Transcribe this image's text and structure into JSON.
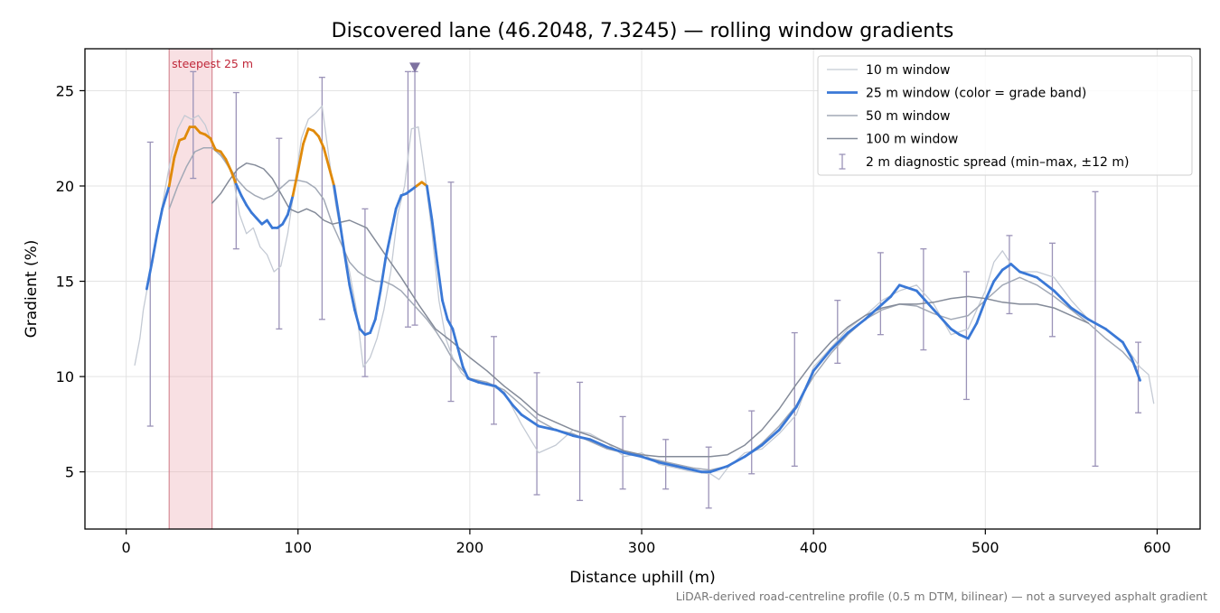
{
  "chart_data": {
    "type": "line",
    "title": "Discovered lane (46.2048, 7.3245) — rolling window gradients",
    "xlabel": "Distance uphill (m)",
    "ylabel": "Gradient (%)",
    "xlim": [
      -24,
      625
    ],
    "ylim": [
      2,
      27.2
    ],
    "xticks": [
      0,
      100,
      200,
      300,
      400,
      500,
      600
    ],
    "yticks": [
      5,
      10,
      15,
      20,
      25
    ],
    "grid": true,
    "legend_position": "top-right",
    "footnote": "LiDAR-derived road-centreline profile (0.5 m DTM, bilinear) — not a surveyed asphalt gradient",
    "highlight": {
      "label": "steepest 25 m",
      "x_range": [
        25,
        50
      ],
      "color": "#e8a0a8"
    },
    "peak_marker": {
      "x": 168,
      "y": 26.0,
      "color": "#7e72a0"
    },
    "grade_band_colors": {
      "below_20": "#3a78d6",
      "at_or_above_20": "#e08a0a"
    },
    "series": [
      {
        "name": "10 m window",
        "color": "#c4cad4",
        "width": 1.3,
        "x": [
          5,
          8,
          10,
          14,
          18,
          22,
          26,
          30,
          34,
          38,
          42,
          46,
          50,
          54,
          58,
          62,
          66,
          70,
          74,
          78,
          82,
          86,
          90,
          94,
          98,
          102,
          106,
          110,
          114,
          118,
          122,
          126,
          130,
          134,
          138,
          142,
          146,
          150,
          154,
          158,
          162,
          166,
          170,
          174,
          178,
          182,
          186,
          190,
          195,
          200,
          210,
          220,
          230,
          240,
          250,
          260,
          270,
          280,
          290,
          300,
          310,
          320,
          330,
          340,
          345,
          350,
          360,
          370,
          380,
          390,
          400,
          410,
          420,
          430,
          440,
          450,
          460,
          470,
          480,
          490,
          500,
          505,
          510,
          515,
          520,
          530,
          540,
          550,
          560,
          570,
          580,
          590,
          595,
          598
        ],
        "y": [
          10.6,
          12.0,
          13.5,
          15.5,
          17.5,
          19.5,
          21.5,
          23.0,
          23.7,
          23.5,
          23.7,
          23.2,
          22.2,
          21.8,
          21.2,
          20.6,
          18.5,
          17.5,
          17.8,
          16.8,
          16.4,
          15.5,
          15.8,
          17.5,
          20.0,
          22.5,
          23.5,
          23.8,
          24.2,
          21.5,
          19.0,
          17.0,
          15.5,
          13.5,
          10.5,
          11.0,
          12.0,
          13.5,
          15.5,
          18.5,
          20.0,
          23.0,
          23.1,
          20.5,
          17.5,
          14.0,
          12.0,
          11.0,
          10.2,
          9.8,
          9.6,
          9.2,
          7.5,
          6.0,
          6.4,
          7.2,
          7.0,
          6.5,
          5.8,
          6.0,
          5.4,
          5.2,
          5.0,
          4.9,
          4.6,
          5.2,
          6.0,
          6.2,
          7.0,
          8.0,
          10.5,
          11.5,
          12.5,
          13.2,
          14.0,
          14.5,
          14.8,
          13.8,
          12.2,
          12.5,
          14.5,
          16.0,
          16.6,
          15.9,
          15.5,
          15.5,
          15.2,
          14.0,
          13.0,
          12.5,
          11.8,
          10.5,
          10.1,
          8.6
        ]
      },
      {
        "name": "25 m window (color = grade band)",
        "color": "#3a78d6",
        "width": 2.8,
        "x": [
          12,
          15,
          18,
          21,
          25,
          28,
          31,
          34,
          37,
          40,
          43,
          46,
          49,
          52,
          55,
          58,
          61,
          64,
          67,
          70,
          73,
          76,
          79,
          82,
          85,
          88,
          91,
          94,
          97,
          100,
          103,
          106,
          109,
          112,
          115,
          118,
          121,
          124,
          127,
          130,
          133,
          136,
          139,
          142,
          145,
          148,
          151,
          154,
          157,
          160,
          163,
          166,
          169,
          172,
          175,
          178,
          181,
          184,
          187,
          190,
          193,
          196,
          199,
          205,
          210,
          215,
          220,
          225,
          230,
          240,
          250,
          260,
          270,
          280,
          290,
          300,
          310,
          320,
          330,
          335,
          340,
          350,
          360,
          370,
          380,
          390,
          395,
          400,
          410,
          420,
          430,
          440,
          445,
          450,
          460,
          470,
          480,
          485,
          490,
          495,
          500,
          505,
          510,
          515,
          520,
          530,
          540,
          550,
          560,
          570,
          580,
          585,
          590
        ],
        "y": [
          14.6,
          16.0,
          17.5,
          18.8,
          20.0,
          21.5,
          22.4,
          22.5,
          23.1,
          23.1,
          22.8,
          22.7,
          22.5,
          21.9,
          21.8,
          21.4,
          20.8,
          20.1,
          19.5,
          19.0,
          18.6,
          18.3,
          18.0,
          18.2,
          17.8,
          17.8,
          18.0,
          18.5,
          19.5,
          20.8,
          22.2,
          23.0,
          22.9,
          22.6,
          22.0,
          21.0,
          20.0,
          18.3,
          16.5,
          14.8,
          13.5,
          12.5,
          12.2,
          12.3,
          13.0,
          14.5,
          16.2,
          17.5,
          18.8,
          19.5,
          19.6,
          19.8,
          20.0,
          20.2,
          20.0,
          18.2,
          16.0,
          14.0,
          13.0,
          12.5,
          11.5,
          10.5,
          9.9,
          9.7,
          9.6,
          9.5,
          9.1,
          8.5,
          8.0,
          7.4,
          7.2,
          6.9,
          6.7,
          6.3,
          6.0,
          5.8,
          5.5,
          5.3,
          5.1,
          5.0,
          5.0,
          5.3,
          5.8,
          6.4,
          7.2,
          8.4,
          9.3,
          10.3,
          11.4,
          12.3,
          13.0,
          13.8,
          14.2,
          14.8,
          14.5,
          13.5,
          12.5,
          12.2,
          12.0,
          12.8,
          14.0,
          15.0,
          15.6,
          15.9,
          15.5,
          15.2,
          14.5,
          13.6,
          13.0,
          12.5,
          11.8,
          11.0,
          9.8
        ]
      },
      {
        "name": "50 m window",
        "color": "#a2a9b6",
        "width": 1.5,
        "x": [
          25,
          30,
          35,
          40,
          45,
          50,
          55,
          60,
          65,
          70,
          75,
          80,
          85,
          90,
          95,
          100,
          105,
          110,
          115,
          120,
          125,
          130,
          135,
          140,
          145,
          150,
          155,
          160,
          165,
          170,
          175,
          180,
          185,
          190,
          200,
          210,
          220,
          230,
          240,
          250,
          260,
          270,
          280,
          290,
          300,
          310,
          320,
          330,
          340,
          350,
          360,
          370,
          380,
          390,
          400,
          410,
          420,
          430,
          440,
          450,
          460,
          470,
          480,
          490,
          500,
          510,
          520,
          530,
          540,
          550,
          560,
          570,
          580,
          588
        ],
        "y": [
          18.8,
          20.0,
          21.0,
          21.8,
          22.0,
          22.0,
          21.6,
          21.0,
          20.3,
          19.8,
          19.5,
          19.3,
          19.5,
          19.9,
          20.3,
          20.3,
          20.2,
          19.9,
          19.3,
          18.0,
          17.0,
          16.0,
          15.5,
          15.2,
          15.0,
          15.0,
          14.8,
          14.5,
          14.0,
          13.5,
          13.0,
          12.4,
          11.7,
          10.9,
          9.9,
          9.7,
          9.3,
          8.5,
          7.7,
          7.2,
          7.0,
          6.6,
          6.2,
          6.0,
          5.8,
          5.6,
          5.4,
          5.2,
          5.1,
          5.3,
          5.8,
          6.5,
          7.4,
          8.5,
          10.0,
          11.2,
          12.2,
          13.0,
          13.5,
          13.8,
          13.7,
          13.3,
          13.0,
          13.2,
          14.0,
          14.8,
          15.2,
          14.8,
          14.2,
          13.5,
          12.8,
          12.0,
          11.3,
          10.5
        ]
      },
      {
        "name": "100 m window",
        "color": "#848b99",
        "width": 1.5,
        "x": [
          50,
          55,
          60,
          65,
          70,
          75,
          80,
          85,
          90,
          95,
          100,
          105,
          110,
          115,
          120,
          130,
          140,
          150,
          160,
          170,
          180,
          190,
          200,
          210,
          220,
          230,
          240,
          250,
          260,
          270,
          280,
          290,
          300,
          310,
          320,
          330,
          340,
          350,
          360,
          370,
          380,
          390,
          400,
          410,
          420,
          430,
          440,
          450,
          460,
          470,
          480,
          490,
          500,
          510,
          520,
          530,
          540,
          550,
          560
        ],
        "y": [
          19.1,
          19.6,
          20.3,
          20.9,
          21.2,
          21.1,
          20.9,
          20.4,
          19.6,
          18.8,
          18.6,
          18.8,
          18.6,
          18.2,
          18.0,
          18.2,
          17.8,
          16.5,
          15.2,
          13.8,
          12.5,
          11.8,
          11.0,
          10.3,
          9.5,
          8.8,
          8.0,
          7.6,
          7.2,
          6.9,
          6.5,
          6.1,
          5.9,
          5.8,
          5.8,
          5.8,
          5.8,
          5.9,
          6.4,
          7.2,
          8.3,
          9.6,
          10.8,
          11.8,
          12.6,
          13.2,
          13.6,
          13.8,
          13.8,
          13.9,
          14.1,
          14.2,
          14.1,
          13.9,
          13.8,
          13.8,
          13.6,
          13.2,
          12.8
        ]
      }
    ],
    "errorbars": {
      "name": "2 m diagnostic spread (min–max, ±12 m)",
      "color": "#9b93b8",
      "x": [
        14,
        39,
        64,
        89,
        114,
        139,
        164,
        168,
        189,
        214,
        239,
        264,
        289,
        314,
        339,
        364,
        389,
        414,
        439,
        464,
        489,
        514,
        539,
        564,
        589
      ],
      "low": [
        7.4,
        20.4,
        16.7,
        12.5,
        13.0,
        10.0,
        12.6,
        12.7,
        8.7,
        7.5,
        3.8,
        3.5,
        4.1,
        4.1,
        3.1,
        4.9,
        5.3,
        10.7,
        12.2,
        11.4,
        8.8,
        13.3,
        12.1,
        5.3,
        8.1
      ],
      "high": [
        22.3,
        26.0,
        24.9,
        22.5,
        25.7,
        18.8,
        26.0,
        26.0,
        20.2,
        12.1,
        10.2,
        9.7,
        7.9,
        6.7,
        6.3,
        8.2,
        12.3,
        14.0,
        16.5,
        16.7,
        15.5,
        17.4,
        17.0,
        19.7,
        11.8
      ]
    }
  }
}
